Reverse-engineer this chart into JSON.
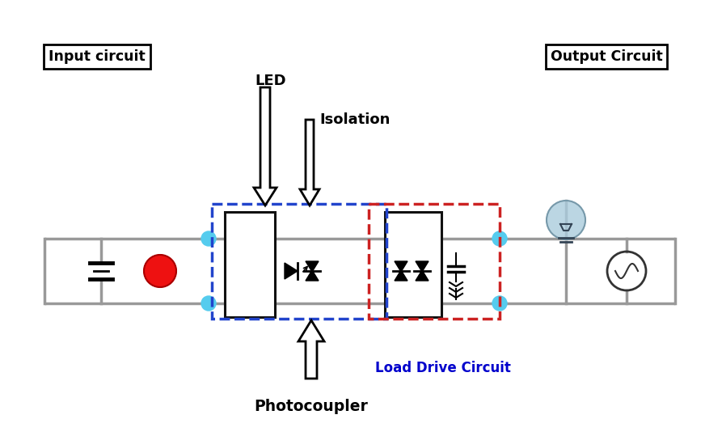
{
  "bg_color": "#ffffff",
  "labels": {
    "input_circuit": "Input circuit",
    "output_circuit": "Output Circuit",
    "led": "LED",
    "isolation": "Isolation",
    "photocoupler": "Photocoupler",
    "load_drive": "Load Drive Circuit"
  },
  "colors": {
    "red_circle": "#ee1111",
    "cyan_circle": "#55ccee",
    "blue_dashed": "#2244cc",
    "red_dashed": "#cc2222",
    "wire": "#999999",
    "black": "#111111",
    "box_fill": "#ffffff",
    "box_edge": "#111111",
    "bulb_fill": "#aaccdd",
    "bulb_edge": "#7799aa",
    "load_drive_text": "#0000cc"
  },
  "figsize": [
    8.93,
    5.39
  ],
  "dpi": 100
}
